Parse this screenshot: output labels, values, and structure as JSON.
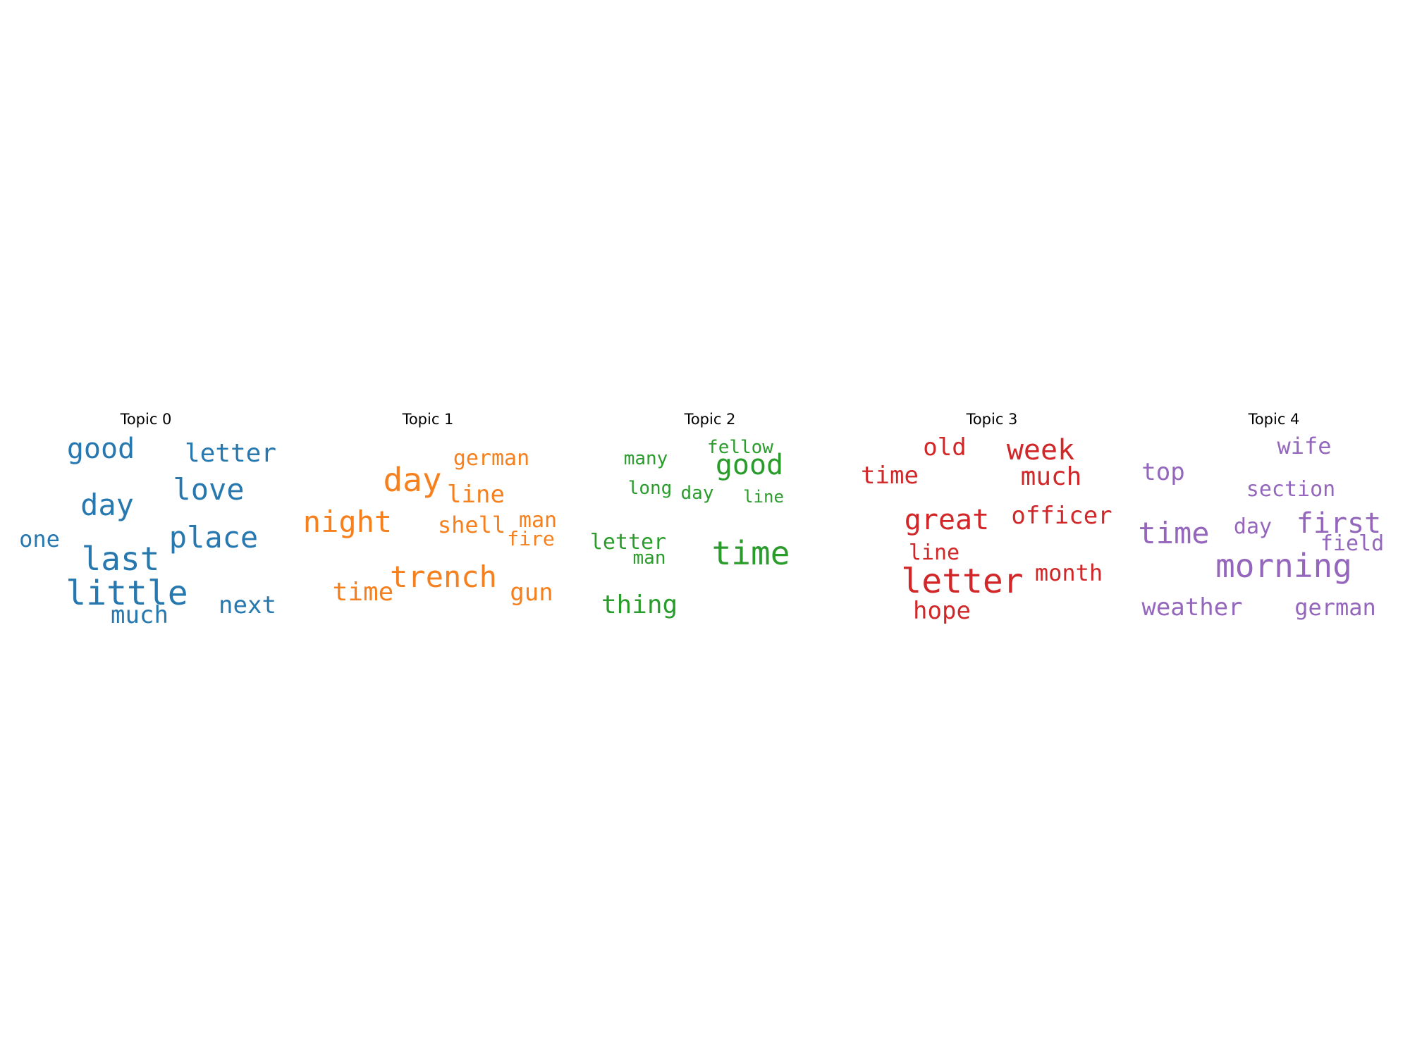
{
  "topics": [
    {
      "title": "Topic 0",
      "color": "#2878b0",
      "words": [
        "good",
        "letter",
        "day",
        "love",
        "one",
        "place",
        "last",
        "little",
        "next",
        "much"
      ]
    },
    {
      "title": "Topic 1",
      "color": "#f5801d",
      "words": [
        "german",
        "day",
        "line",
        "night",
        "shell",
        "man",
        "fire",
        "trench",
        "time",
        "gun"
      ]
    },
    {
      "title": "Topic 2",
      "color": "#2a9c2c",
      "words": [
        "fellow",
        "many",
        "good",
        "long",
        "day",
        "line",
        "letter",
        "man",
        "time",
        "thing"
      ]
    },
    {
      "title": "Topic 3",
      "color": "#d12729",
      "words": [
        "old",
        "week",
        "time",
        "much",
        "great",
        "officer",
        "line",
        "letter",
        "month",
        "hope"
      ]
    },
    {
      "title": "Topic 4",
      "color": "#9467bd",
      "words": [
        "wife",
        "top",
        "section",
        "time",
        "day",
        "first",
        "field",
        "morning",
        "weather",
        "german"
      ]
    }
  ]
}
